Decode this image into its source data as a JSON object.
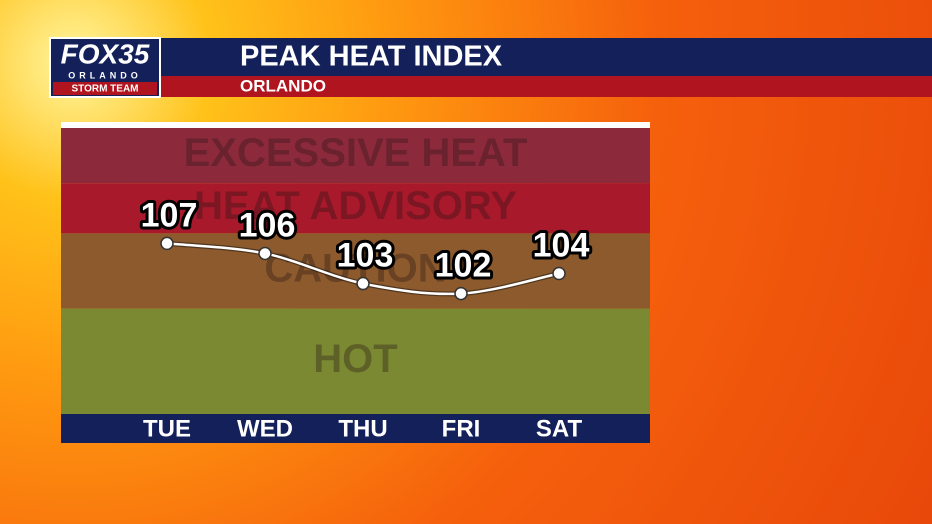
{
  "logo": {
    "network": "FOX35",
    "city": "ORLANDO",
    "team": "STORM TEAM"
  },
  "chart_data": {
    "type": "line",
    "title": "PEAK HEAT INDEX",
    "subtitle": "ORLANDO",
    "categories": [
      "TUE",
      "WED",
      "THU",
      "FRI",
      "SAT"
    ],
    "values": [
      107,
      106,
      103,
      102,
      104
    ],
    "color": "#ffffff",
    "ylim": [
      90,
      118.5
    ],
    "bands": [
      {
        "label": "EXCESSIVE HEAT",
        "from": 113,
        "to": 118.5,
        "color": "#8c2a3c"
      },
      {
        "label": "HEAT ADVISORY",
        "from": 108,
        "to": 113,
        "color": "#a8192c"
      },
      {
        "label": "CAUTION",
        "from": 100.5,
        "to": 108,
        "color": "#8c5a2c"
      },
      {
        "label": "HOT",
        "from": 90,
        "to": 100.5,
        "color": "#7b8a32"
      }
    ]
  }
}
